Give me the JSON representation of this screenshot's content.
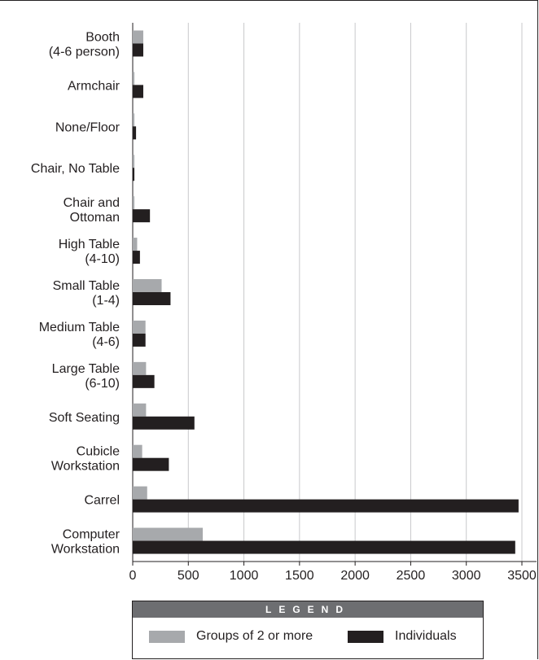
{
  "chart_data": {
    "type": "bar",
    "orientation": "horizontal",
    "categories": [
      [
        "Booth",
        "(4-6 person)"
      ],
      [
        "Armchair"
      ],
      [
        "None/Floor"
      ],
      [
        "Chair, No Table"
      ],
      [
        "Chair and",
        "Ottoman"
      ],
      [
        "High Table",
        "(4-10)"
      ],
      [
        "Small Table",
        "(1-4)"
      ],
      [
        "Medium Table",
        "(4-6)"
      ],
      [
        "Large Table",
        "(6-10)"
      ],
      [
        "Soft Seating"
      ],
      [
        "Cubicle",
        "Workstation"
      ],
      [
        "Carrel"
      ],
      [
        "Computer",
        "Workstation"
      ]
    ],
    "series": [
      {
        "name": "Groups of 2 or more",
        "color": "#a7a9ac",
        "values": [
          95,
          15,
          15,
          15,
          15,
          40,
          260,
          115,
          120,
          120,
          85,
          130,
          630
        ]
      },
      {
        "name": "Individuals",
        "color": "#231f20",
        "values": [
          95,
          95,
          30,
          15,
          155,
          65,
          340,
          115,
          195,
          555,
          325,
          3470,
          3440
        ]
      }
    ],
    "xlim": [
      0,
      3500
    ],
    "xticks": [
      "0",
      "500",
      "1000",
      "1500",
      "2000",
      "2500",
      "3000",
      "3500"
    ],
    "grid": true,
    "legend_position": "bottom"
  },
  "legend": {
    "title": "LEGEND",
    "items": [
      {
        "label": "Groups of 2 or more",
        "color": "#a7a9ac"
      },
      {
        "label": "Individuals",
        "color": "#231f20"
      }
    ]
  }
}
